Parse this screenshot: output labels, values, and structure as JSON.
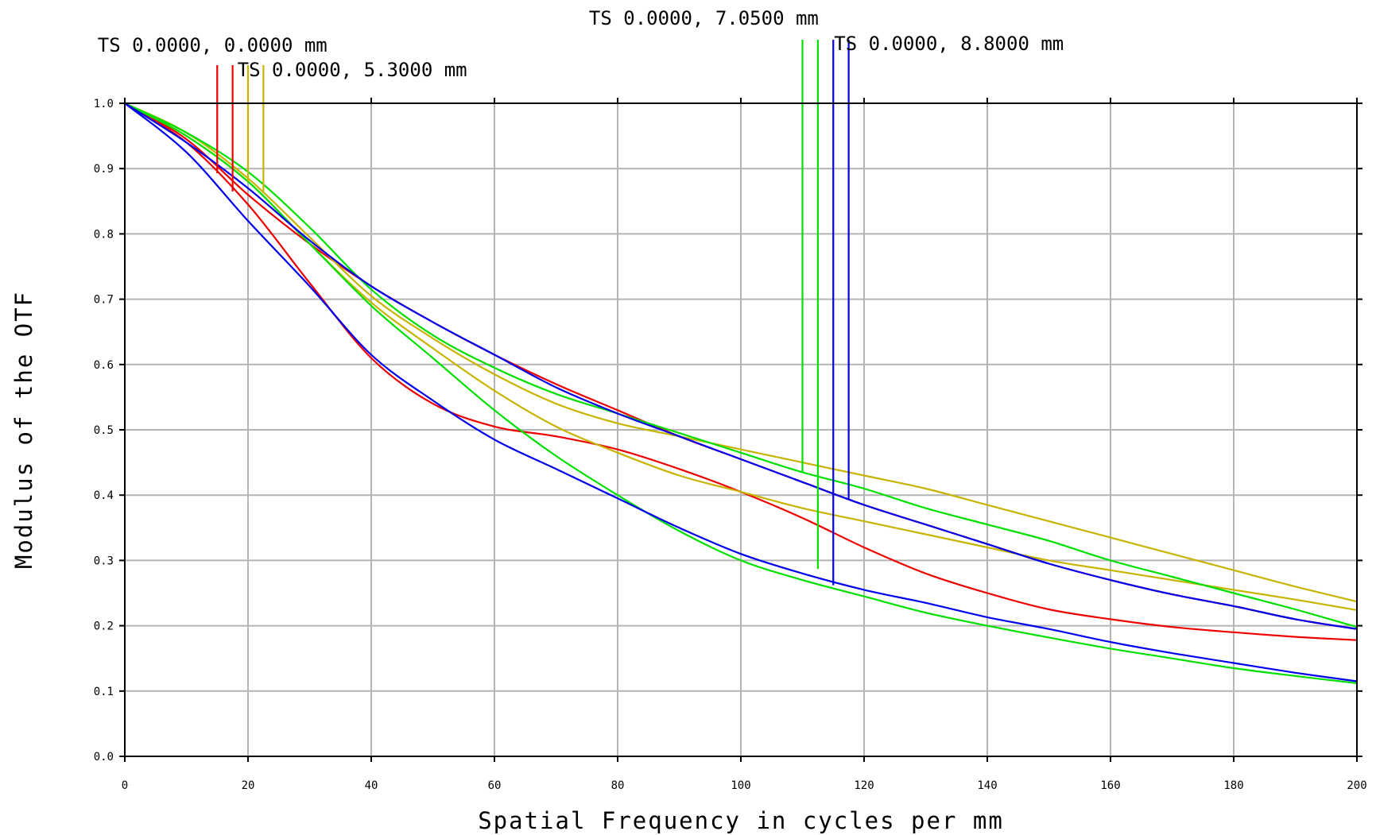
{
  "chart_data": {
    "type": "line",
    "title": "",
    "xlabel": "Spatial Frequency in cycles per mm",
    "ylabel": "Modulus of the OTF",
    "xlim": [
      0,
      200
    ],
    "ylim": [
      0,
      1
    ],
    "grid": true,
    "x_ticks": [
      "0",
      "20",
      "40",
      "60",
      "80",
      "100",
      "120",
      "140",
      "160",
      "180",
      "200"
    ],
    "y_ticks": [
      "0.0",
      "0.1",
      "0.2",
      "0.3",
      "0.4",
      "0.5",
      "0.6",
      "0.7",
      "0.8",
      "0.9",
      "1.0"
    ],
    "legend": [
      {
        "label": "TS 0.0000, 0.0000 mm",
        "color": "#ee0000"
      },
      {
        "label": "TS 0.0000, 5.3000 mm",
        "color": "#c8b400"
      },
      {
        "label": "TS 0.0000, 7.0500 mm",
        "color": "#00e000"
      },
      {
        "label": "TS 0.0000, 8.8000 mm",
        "color": "#0000ee"
      }
    ],
    "series": [
      {
        "color": "#ee0000",
        "x": [
          0,
          10,
          20,
          30,
          40,
          50,
          60,
          70,
          80,
          90,
          100,
          110,
          120,
          130,
          140,
          150,
          160,
          170,
          180,
          190,
          200
        ],
        "y": [
          1.0,
          0.94,
          0.845,
          0.725,
          0.61,
          0.54,
          0.505,
          0.49,
          0.47,
          0.44,
          0.405,
          0.365,
          0.32,
          0.28,
          0.25,
          0.225,
          0.21,
          0.198,
          0.19,
          0.183,
          0.178
        ]
      },
      {
        "color": "#ee0000",
        "x": [
          0,
          10,
          20,
          30,
          40,
          50,
          60,
          70,
          80,
          90,
          100,
          110,
          120,
          130,
          140,
          150,
          160,
          170,
          180,
          190,
          200
        ],
        "y": [
          1.0,
          0.945,
          0.86,
          0.785,
          0.72,
          0.665,
          0.615,
          0.57,
          0.53,
          0.49,
          0.455,
          0.42,
          0.385,
          0.355,
          0.325,
          0.295,
          0.27,
          0.248,
          0.23,
          0.21,
          0.195
        ]
      },
      {
        "color": "#c8b400",
        "x": [
          0,
          10,
          20,
          30,
          40,
          50,
          60,
          70,
          80,
          90,
          100,
          110,
          120,
          130,
          140,
          150,
          160,
          170,
          180,
          190,
          200
        ],
        "y": [
          1.0,
          0.955,
          0.885,
          0.795,
          0.705,
          0.64,
          0.585,
          0.54,
          0.51,
          0.49,
          0.47,
          0.45,
          0.43,
          0.41,
          0.385,
          0.36,
          0.335,
          0.31,
          0.285,
          0.26,
          0.237
        ]
      },
      {
        "color": "#c8b400",
        "x": [
          0,
          10,
          20,
          30,
          40,
          50,
          60,
          70,
          80,
          90,
          100,
          110,
          120,
          130,
          140,
          150,
          160,
          170,
          180,
          190,
          200
        ],
        "y": [
          1.0,
          0.95,
          0.88,
          0.785,
          0.695,
          0.625,
          0.56,
          0.505,
          0.465,
          0.43,
          0.405,
          0.38,
          0.36,
          0.34,
          0.32,
          0.3,
          0.285,
          0.27,
          0.255,
          0.24,
          0.224
        ]
      },
      {
        "color": "#00e000",
        "x": [
          0,
          10,
          20,
          30,
          40,
          50,
          60,
          70,
          80,
          90,
          100,
          110,
          120,
          130,
          140,
          150,
          160,
          170,
          180,
          190,
          200
        ],
        "y": [
          1.0,
          0.955,
          0.895,
          0.81,
          0.715,
          0.645,
          0.595,
          0.555,
          0.525,
          0.495,
          0.465,
          0.435,
          0.41,
          0.38,
          0.355,
          0.33,
          0.3,
          0.275,
          0.25,
          0.225,
          0.198
        ]
      },
      {
        "color": "#00e000",
        "x": [
          0,
          10,
          20,
          30,
          40,
          50,
          60,
          70,
          80,
          90,
          100,
          110,
          120,
          130,
          140,
          150,
          160,
          170,
          180,
          190,
          200
        ],
        "y": [
          1.0,
          0.95,
          0.88,
          0.785,
          0.69,
          0.61,
          0.53,
          0.46,
          0.4,
          0.345,
          0.3,
          0.27,
          0.245,
          0.22,
          0.2,
          0.182,
          0.165,
          0.15,
          0.135,
          0.123,
          0.112
        ]
      },
      {
        "color": "#0000ee",
        "x": [
          0,
          10,
          20,
          30,
          40,
          50,
          60,
          70,
          80,
          90,
          100,
          110,
          120,
          130,
          140,
          150,
          160,
          170,
          180,
          190,
          200
        ],
        "y": [
          1.0,
          0.94,
          0.87,
          0.79,
          0.72,
          0.665,
          0.615,
          0.565,
          0.525,
          0.49,
          0.455,
          0.42,
          0.385,
          0.355,
          0.325,
          0.295,
          0.27,
          0.248,
          0.23,
          0.21,
          0.195
        ]
      },
      {
        "color": "#0000ee",
        "x": [
          0,
          10,
          20,
          30,
          40,
          50,
          60,
          70,
          80,
          90,
          100,
          110,
          120,
          130,
          140,
          150,
          160,
          170,
          180,
          190,
          200
        ],
        "y": [
          1.0,
          0.925,
          0.82,
          0.72,
          0.615,
          0.545,
          0.485,
          0.44,
          0.395,
          0.35,
          0.31,
          0.28,
          0.255,
          0.235,
          0.213,
          0.195,
          0.175,
          0.158,
          0.143,
          0.128,
          0.115
        ]
      }
    ],
    "markers": [
      {
        "color": "#ee0000",
        "x": 15,
        "y": 0.893
      },
      {
        "color": "#ee0000",
        "x": 17.5,
        "y": 0.865
      },
      {
        "color": "#c8b400",
        "x": 20,
        "y": 0.88
      },
      {
        "color": "#c8b400",
        "x": 22.5,
        "y": 0.862
      },
      {
        "color": "#00e000",
        "x": 110,
        "y": 0.435
      },
      {
        "color": "#00e000",
        "x": 112.5,
        "y": 0.287
      },
      {
        "color": "#0000ee",
        "x": 115,
        "y": 0.262
      },
      {
        "color": "#0000ee",
        "x": 117.5,
        "y": 0.393
      }
    ]
  }
}
